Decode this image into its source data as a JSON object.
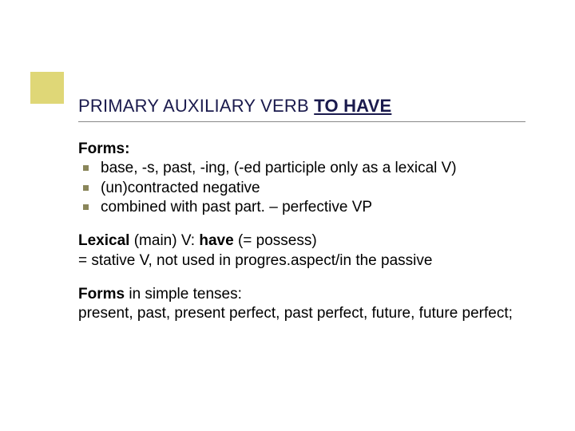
{
  "accent": {
    "color": "#dfd777"
  },
  "title": {
    "prefix": "PRIMARY AUXILIARY VERB ",
    "emphasis": "TO HAVE",
    "color": "#1a1a4d",
    "fontsize": 22
  },
  "rule": {
    "color": "#888888"
  },
  "forms": {
    "heading": "Forms:",
    "bullets": [
      "base, -s, past, -ing, (-ed participle only as a lexical V)",
      "(un)contracted negative",
      "combined with past part. – perfective VP"
    ],
    "bullet_color": "#8a865a"
  },
  "lexical": {
    "line1_prefix": "Lexical ",
    "line1_rest": "(main) V: ",
    "line1_have": "have",
    "line1_tail": " (= possess)",
    "line2": "= stative V, not used in progres.aspect/in the passive"
  },
  "tenses": {
    "heading": "Forms",
    "heading_tail": " in simple tenses:",
    "body": "present, past, present perfect, past perfect, future, future perfect;"
  },
  "body_fontsize": 19,
  "body_color": "#000000"
}
